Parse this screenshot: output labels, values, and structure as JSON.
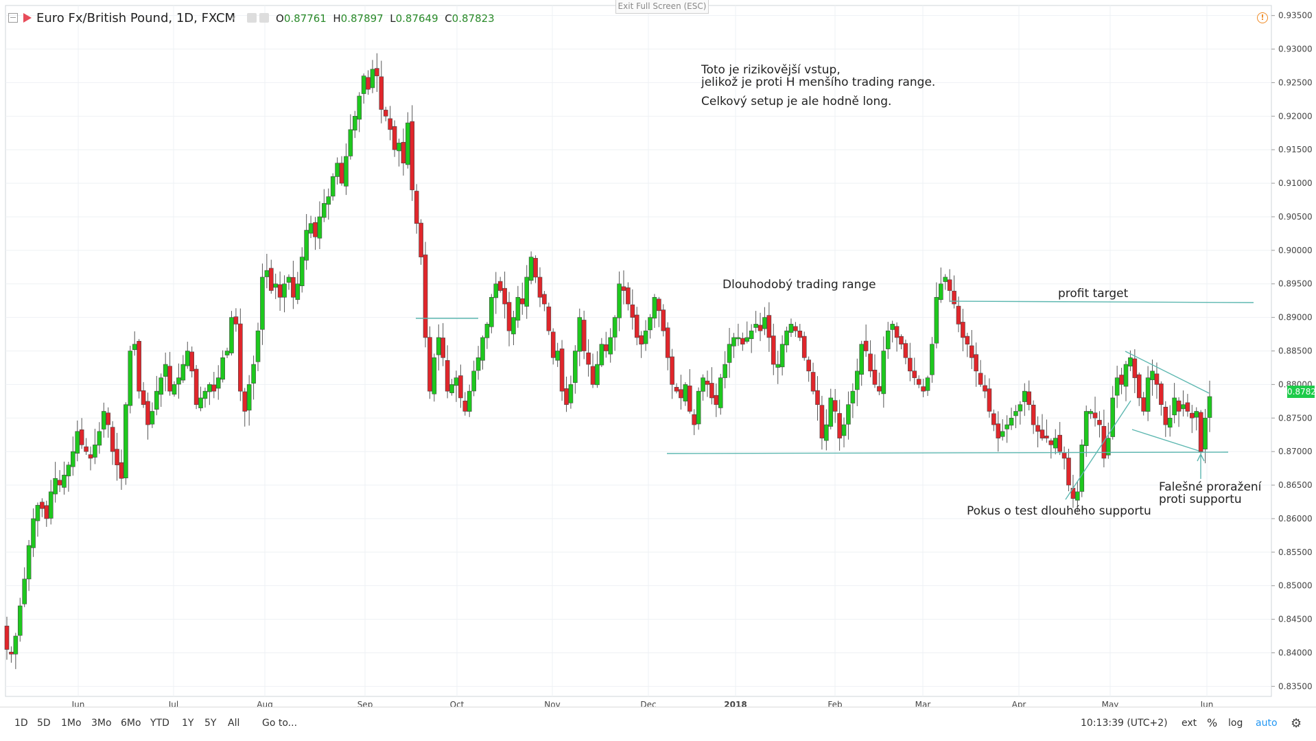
{
  "header": {
    "symbol_title": "Euro Fx/British Pound, 1D, FXCM",
    "ohlc": {
      "o_label": "O",
      "o": "0.87761",
      "h_label": "H",
      "h": "0.87897",
      "l_label": "L",
      "l": "0.87649",
      "c_label": "C",
      "c": "0.87823"
    }
  },
  "exit_fullscreen": "Exit Full Screen (ESC)",
  "annotations": {
    "note1": "Toto je rizikovější vstup,\njelikož je proti H menšího trading range.",
    "note2": "Celkový setup je ale hodně long.",
    "long_range": "Dlouhodobý trading range",
    "profit_target": "profit target",
    "false_break": "Falešné proražení\nproti supportu",
    "support_test": "Pokus o test dlouhého supportu"
  },
  "bottom_bar": {
    "timeframes": [
      "1D",
      "5D",
      "1Mo",
      "3Mo",
      "6Mo",
      "YTD",
      "1Y",
      "5Y",
      "All"
    ],
    "goto": "Go to...",
    "clock": "10:13:39 (UTC+2)",
    "ext": "ext",
    "percent": "%",
    "log": "log",
    "auto": "auto"
  },
  "colors": {
    "up": "#1ec81e",
    "down": "#e0262b",
    "lines": "#5cb7b0",
    "grid": "#eef1f4"
  },
  "chart_data": {
    "type": "candlestick",
    "symbol": "EUR/GBP",
    "interval": "1D",
    "y_ticks": [
      "0.93500",
      "0.93000",
      "0.92500",
      "0.92000",
      "0.91500",
      "0.91000",
      "0.90500",
      "0.90000",
      "0.89500",
      "0.89000",
      "0.88500",
      "0.88000",
      "0.87500",
      "0.87000",
      "0.86500",
      "0.86000",
      "0.85500",
      "0.85000",
      "0.84500",
      "0.84000",
      "0.83500"
    ],
    "x_ticks": [
      "Jun",
      "Jul",
      "Aug",
      "Sep",
      "Oct",
      "Nov",
      "Dec",
      "2018",
      "Feb",
      "Mar",
      "Apr",
      "May",
      "Jun"
    ],
    "ylim": [
      0.8335,
      0.9365
    ],
    "last_price": "0.87823",
    "closes": [
      0.8405,
      0.8398,
      0.8425,
      0.847,
      0.851,
      0.856,
      0.86,
      0.862,
      0.8615,
      0.86,
      0.864,
      0.866,
      0.865,
      0.8665,
      0.868,
      0.87,
      0.873,
      0.871,
      0.87,
      0.869,
      0.871,
      0.873,
      0.876,
      0.874,
      0.87,
      0.868,
      0.866,
      0.877,
      0.885,
      0.886,
      0.879,
      0.877,
      0.874,
      0.876,
      0.879,
      0.881,
      0.883,
      0.879,
      0.88,
      0.881,
      0.883,
      0.885,
      0.882,
      0.877,
      0.878,
      0.879,
      0.88,
      0.879,
      0.881,
      0.884,
      0.885,
      0.89,
      0.889,
      0.879,
      0.876,
      0.88,
      0.883,
      0.888,
      0.896,
      0.897,
      0.894,
      0.895,
      0.893,
      0.895,
      0.896,
      0.893,
      0.895,
      0.899,
      0.903,
      0.904,
      0.902,
      0.905,
      0.907,
      0.908,
      0.911,
      0.913,
      0.91,
      0.914,
      0.918,
      0.92,
      0.923,
      0.926,
      0.924,
      0.927,
      0.926,
      0.921,
      0.92,
      0.918,
      0.915,
      0.916,
      0.913,
      0.919,
      0.909,
      0.904,
      0.899,
      0.887,
      0.879,
      0.884,
      0.887,
      0.884,
      0.879,
      0.88,
      0.881,
      0.878,
      0.876,
      0.879,
      0.882,
      0.884,
      0.887,
      0.889,
      0.893,
      0.895,
      0.894,
      0.892,
      0.888,
      0.89,
      0.893,
      0.892,
      0.896,
      0.899,
      0.896,
      0.893,
      0.892,
      0.888,
      0.884,
      0.885,
      0.879,
      0.877,
      0.88,
      0.885,
      0.89,
      0.885,
      0.883,
      0.88,
      0.883,
      0.886,
      0.885,
      0.887,
      0.89,
      0.895,
      0.894,
      0.892,
      0.89,
      0.887,
      0.886,
      0.888,
      0.89,
      0.893,
      0.891,
      0.888,
      0.884,
      0.88,
      0.879,
      0.878,
      0.88,
      0.876,
      0.874,
      0.879,
      0.881,
      0.88,
      0.878,
      0.877,
      0.881,
      0.883,
      0.886,
      0.887,
      0.887,
      0.886,
      0.887,
      0.888,
      0.889,
      0.888,
      0.89,
      0.887,
      0.883,
      0.883,
      0.886,
      0.888,
      0.889,
      0.888,
      0.887,
      0.884,
      0.882,
      0.879,
      0.877,
      0.872,
      0.874,
      0.878,
      0.876,
      0.872,
      0.874,
      0.877,
      0.879,
      0.882,
      0.886,
      0.885,
      0.882,
      0.88,
      0.879,
      0.885,
      0.888,
      0.889,
      0.887,
      0.886,
      0.884,
      0.882,
      0.881,
      0.88,
      0.879,
      0.881,
      0.886,
      0.893,
      0.895,
      0.896,
      0.894,
      0.892,
      0.889,
      0.887,
      0.886,
      0.884,
      0.882,
      0.88,
      0.879,
      0.876,
      0.874,
      0.872,
      0.873,
      0.874,
      0.875,
      0.876,
      0.877,
      0.879,
      0.877,
      0.874,
      0.873,
      0.872,
      0.872,
      0.871,
      0.872,
      0.87,
      0.869,
      0.865,
      0.863,
      0.864,
      0.871,
      0.876,
      0.876,
      0.875,
      0.874,
      0.869,
      0.872,
      0.878,
      0.881,
      0.88,
      0.883,
      0.884,
      0.881,
      0.878,
      0.876,
      0.881,
      0.882,
      0.88,
      0.877,
      0.874,
      0.875,
      0.878,
      0.876,
      0.877,
      0.876,
      0.875,
      0.876,
      0.87,
      0.875,
      0.8782
    ]
  }
}
